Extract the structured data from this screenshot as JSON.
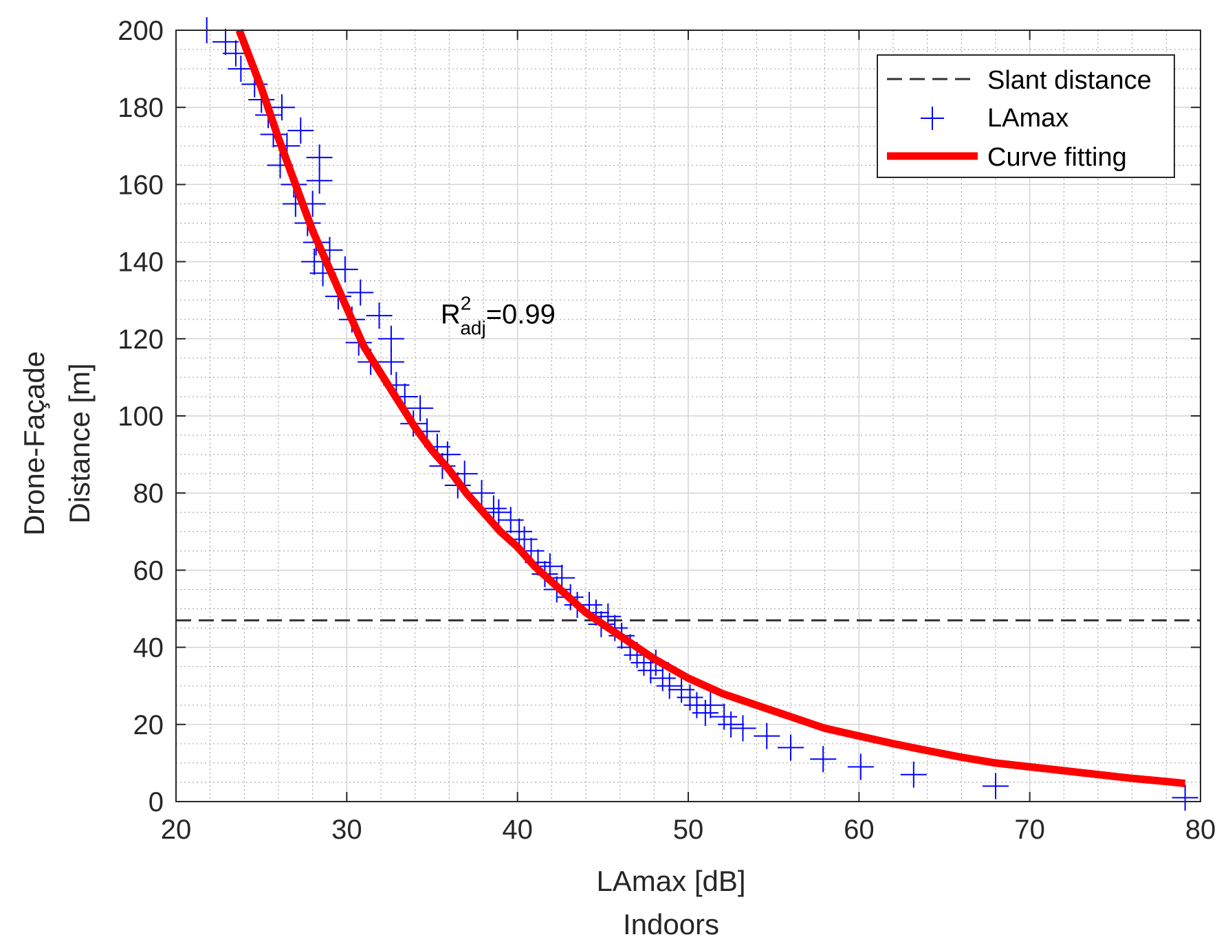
{
  "chart_data": {
    "type": "scatter",
    "title": "",
    "xlabel": "LAmax [dB]",
    "xlabel2": "Indoors",
    "ylabel_line1": "Drone-Façade",
    "ylabel_line2": "Distance [m]",
    "xlim": [
      20,
      80
    ],
    "ylim": [
      0,
      200
    ],
    "xticks": [
      20,
      30,
      40,
      50,
      60,
      70,
      80
    ],
    "yticks": [
      0,
      20,
      40,
      60,
      80,
      100,
      120,
      140,
      160,
      180,
      200
    ],
    "grid": true,
    "minor_grid": true,
    "legend_position": "top-right",
    "annotation": {
      "base": "R",
      "sup": "2",
      "sub": "adj",
      "suffix": "=0.99",
      "at": {
        "x": 35.9,
        "y": 124
      }
    },
    "series": [
      {
        "name": "Slant distance",
        "kind": "hline",
        "y": 47,
        "color": "#333333",
        "style": "dashed"
      },
      {
        "name": "LAmax",
        "kind": "marker",
        "marker": "+",
        "color": "#0000ff",
        "points": [
          [
            21.8,
            200
          ],
          [
            22.9,
            197
          ],
          [
            23.5,
            194
          ],
          [
            23.8,
            190
          ],
          [
            24.6,
            186
          ],
          [
            25.0,
            182
          ],
          [
            25.4,
            178
          ],
          [
            26.2,
            180
          ],
          [
            25.7,
            173
          ],
          [
            26.5,
            170
          ],
          [
            27.3,
            174
          ],
          [
            26.1,
            165
          ],
          [
            26.9,
            160
          ],
          [
            28.4,
            167
          ],
          [
            28.4,
            161
          ],
          [
            27.0,
            155
          ],
          [
            28.0,
            155
          ],
          [
            27.7,
            150
          ],
          [
            28.2,
            145
          ],
          [
            29.0,
            143
          ],
          [
            28.1,
            140
          ],
          [
            28.6,
            137
          ],
          [
            29.9,
            138
          ],
          [
            29.5,
            131
          ],
          [
            30.8,
            132
          ],
          [
            30.3,
            125
          ],
          [
            31.9,
            126
          ],
          [
            30.7,
            119
          ],
          [
            32.6,
            120
          ],
          [
            31.4,
            114
          ],
          [
            32.6,
            114
          ],
          [
            32.9,
            108
          ],
          [
            33.4,
            105
          ],
          [
            34.3,
            102
          ],
          [
            33.9,
            98
          ],
          [
            34.7,
            96
          ],
          [
            35.3,
            92
          ],
          [
            35.9,
            90
          ],
          [
            35.6,
            87
          ],
          [
            36.9,
            85
          ],
          [
            36.5,
            82
          ],
          [
            37.9,
            80
          ],
          [
            38.6,
            76
          ],
          [
            38.9,
            75
          ],
          [
            39.6,
            73
          ],
          [
            40.1,
            70
          ],
          [
            40.4,
            68
          ],
          [
            40.8,
            65
          ],
          [
            41.2,
            62
          ],
          [
            41.9,
            61
          ],
          [
            41.6,
            59
          ],
          [
            42.6,
            58
          ],
          [
            42.3,
            55
          ],
          [
            43.1,
            53
          ],
          [
            43.5,
            51
          ],
          [
            44.2,
            51
          ],
          [
            44.6,
            49
          ],
          [
            45.3,
            48
          ],
          [
            44.9,
            46
          ],
          [
            45.7,
            45
          ],
          [
            46.1,
            43
          ],
          [
            46.6,
            40
          ],
          [
            47.0,
            38
          ],
          [
            47.4,
            36
          ],
          [
            48.1,
            36
          ],
          [
            47.8,
            34
          ],
          [
            48.5,
            32
          ],
          [
            48.9,
            30
          ],
          [
            49.6,
            29
          ],
          [
            50.1,
            27
          ],
          [
            50.5,
            25
          ],
          [
            51.3,
            25
          ],
          [
            51.0,
            23
          ],
          [
            52.1,
            22
          ],
          [
            52.5,
            20
          ],
          [
            53.2,
            19
          ],
          [
            54.6,
            17
          ],
          [
            56.0,
            14
          ],
          [
            57.9,
            11
          ],
          [
            60.1,
            9
          ],
          [
            63.2,
            7
          ],
          [
            68.0,
            4
          ],
          [
            79.1,
            1
          ]
        ]
      },
      {
        "name": "Curve fitting",
        "kind": "line",
        "color": "#ff0000",
        "style": "solid",
        "points": [
          [
            23.7,
            200
          ],
          [
            25.0,
            185
          ],
          [
            26.0,
            172
          ],
          [
            27.0,
            160
          ],
          [
            28.0,
            148
          ],
          [
            29.0,
            138
          ],
          [
            30.0,
            128
          ],
          [
            31.0,
            118
          ],
          [
            32.0,
            111
          ],
          [
            33.0,
            104
          ],
          [
            34.0,
            97
          ],
          [
            35.0,
            91
          ],
          [
            36.0,
            86
          ],
          [
            37.0,
            80
          ],
          [
            38.0,
            75
          ],
          [
            39.0,
            70
          ],
          [
            40.0,
            66
          ],
          [
            41.0,
            61
          ],
          [
            42.0,
            57
          ],
          [
            43.0,
            53
          ],
          [
            44.0,
            49
          ],
          [
            45.0,
            46
          ],
          [
            46.0,
            43
          ],
          [
            47.0,
            40
          ],
          [
            48.0,
            37
          ],
          [
            49.0,
            34.5
          ],
          [
            50.0,
            32
          ],
          [
            52.0,
            28
          ],
          [
            54.0,
            25
          ],
          [
            56.0,
            22
          ],
          [
            58.0,
            19
          ],
          [
            60.0,
            17
          ],
          [
            62.0,
            15
          ],
          [
            64.0,
            13.2
          ],
          [
            66.0,
            11.5
          ],
          [
            68.0,
            10
          ],
          [
            70.0,
            9
          ],
          [
            72.0,
            8
          ],
          [
            74.0,
            7
          ],
          [
            76.0,
            6
          ],
          [
            78.0,
            5.2
          ],
          [
            79.1,
            4.7
          ]
        ]
      }
    ]
  }
}
